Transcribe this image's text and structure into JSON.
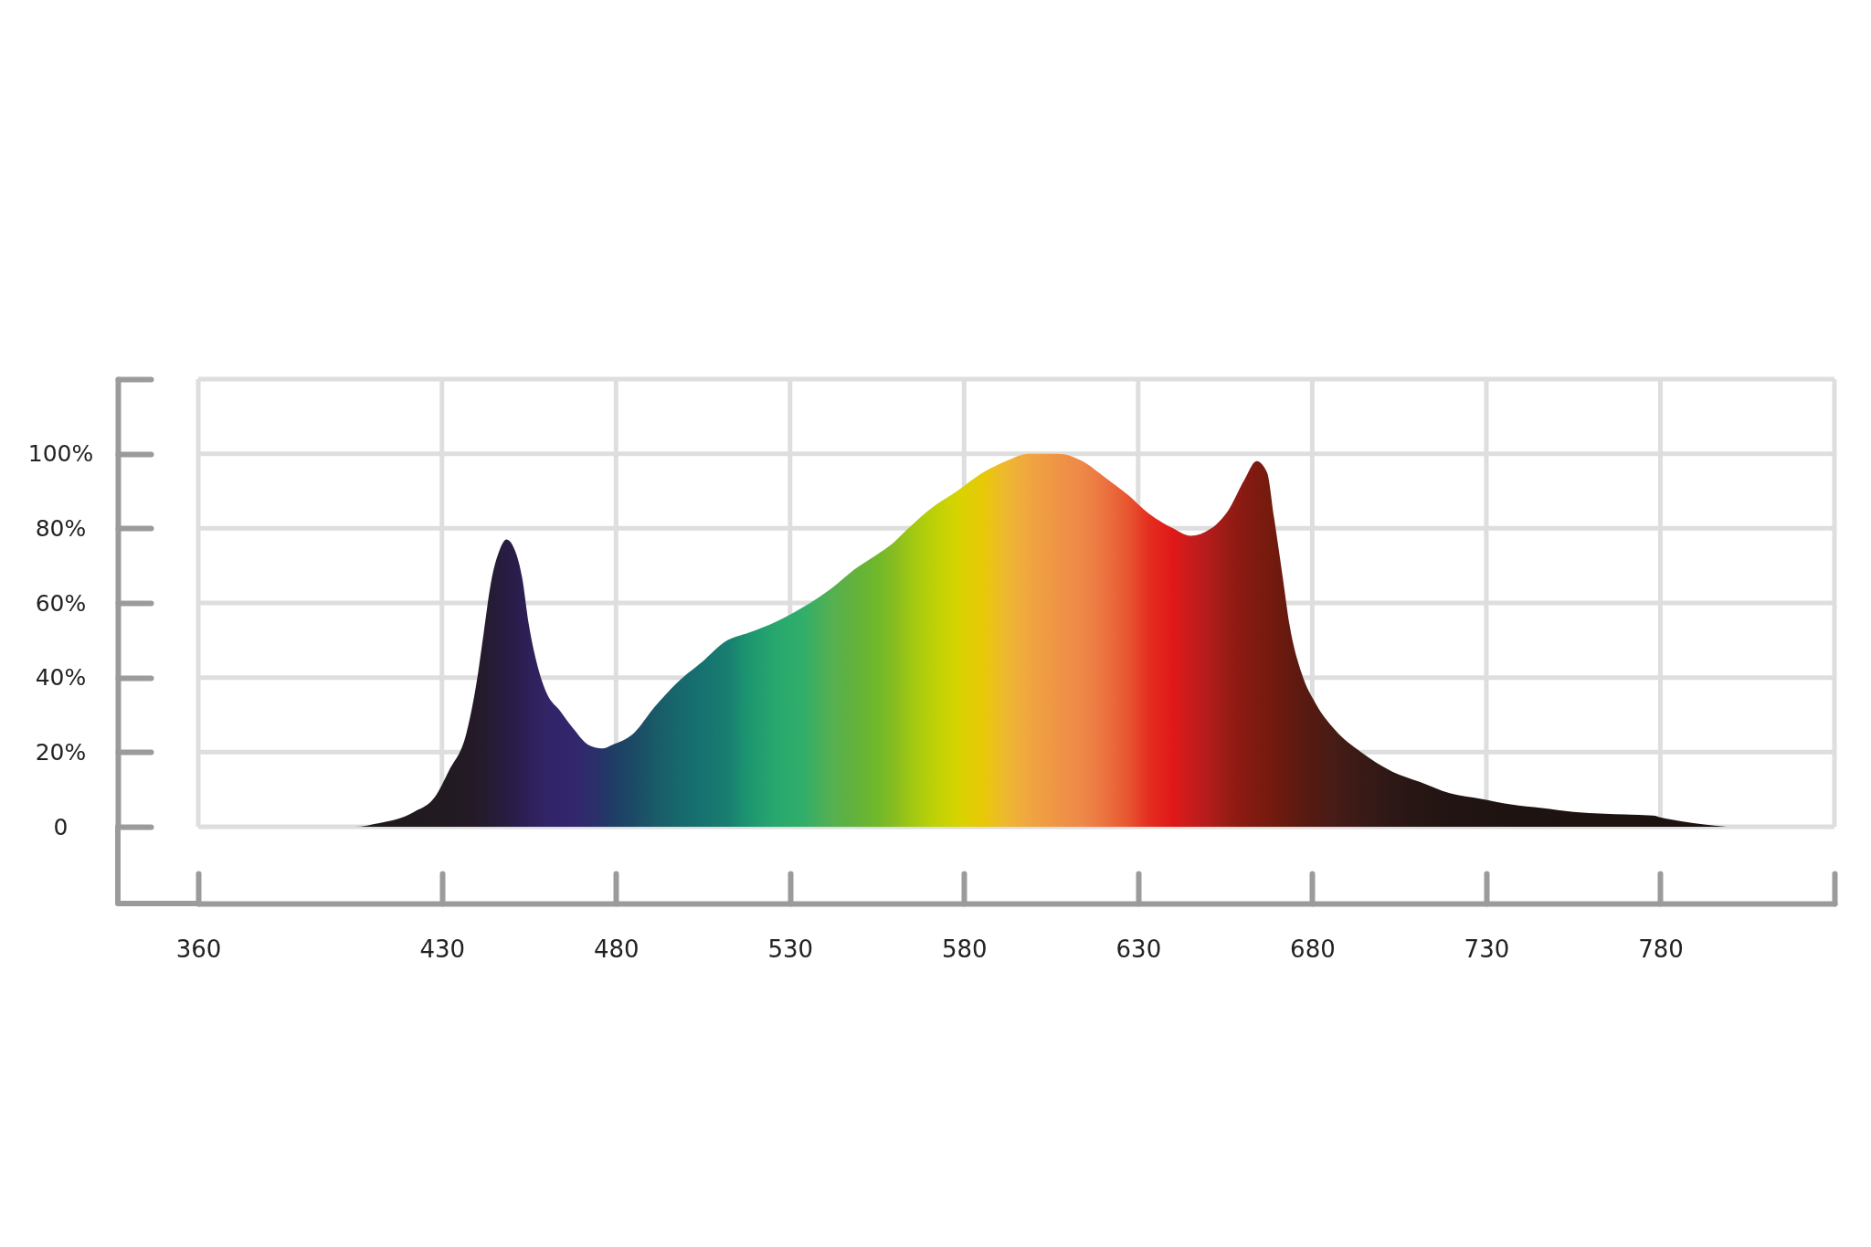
{
  "chart_data": {
    "type": "area",
    "x": [
      380,
      395,
      405,
      412,
      417,
      422,
      428,
      432,
      437,
      440,
      442,
      444,
      446.5,
      448.5,
      451,
      453,
      455,
      457.5,
      460,
      464,
      468,
      472,
      476,
      479,
      485,
      491,
      498,
      504.5,
      512,
      518,
      526,
      534,
      542,
      548.5,
      555,
      559.5,
      564,
      570,
      578,
      585.5,
      592,
      598.5,
      607,
      614,
      620,
      627,
      633,
      640,
      645,
      651,
      656,
      660.5,
      664,
      667,
      669,
      671.5,
      673.5,
      677,
      681,
      686.5,
      694,
      702.5,
      711,
      719.5,
      728.5,
      737,
      746,
      755,
      764,
      778,
      780,
      786,
      792,
      799
    ],
    "values": [
      0,
      0,
      0,
      1,
      2,
      4,
      8,
      15,
      25,
      39,
      52,
      65,
      74,
      77,
      74,
      67,
      54,
      43,
      36,
      31,
      26,
      22,
      21,
      22,
      25,
      32,
      39,
      44,
      50,
      52,
      55,
      59,
      64,
      69,
      73,
      76,
      80,
      85,
      90,
      95,
      98,
      100,
      100,
      98,
      94,
      89,
      84,
      80,
      78,
      80,
      85,
      93,
      98,
      95,
      83,
      67,
      54,
      41,
      33,
      26,
      20,
      15,
      12,
      9,
      7.5,
      6,
      5,
      4,
      3.5,
      3,
      2.5,
      1.5,
      0.7,
      0
    ],
    "colors": [
      "#1c1a1b",
      "#1c1a1b",
      "#1d1a1c",
      "#1e1a1d",
      "#1f1a1e",
      "#201a1f",
      "#211a20",
      "#221a22",
      "#231a25",
      "#241a28",
      "#251b2e",
      "#261b34",
      "#271c3b",
      "#281c42",
      "#2a1d4a",
      "#2c1e52",
      "#2e2058",
      "#30225f",
      "#322466",
      "#33256c",
      "#33266e",
      "#2e2c6c",
      "#263468",
      "#1f3d66",
      "#1c4a66",
      "#1a5a68",
      "#17686c",
      "#167270",
      "#187e70",
      "#1d9670",
      "#27a86e",
      "#32ae6a",
      "#55b050",
      "#62b23c",
      "#70b82a",
      "#84bc22",
      "#9cc616",
      "#b8d008",
      "#d6d400",
      "#e8c808",
      "#eeb830",
      "#f0a640",
      "#ef9446",
      "#ee8848",
      "#ec7440",
      "#e85630",
      "#e42e20",
      "#e01818",
      "#c81c1c",
      "#b01c1a",
      "#961c14",
      "#881a12",
      "#7e1a10",
      "#781a0e",
      "#721a0e",
      "#6a1a0e",
      "#641a10",
      "#5a1a10",
      "#521a12",
      "#461c16",
      "#3a1a16",
      "#2e1816",
      "#261614",
      "#221412",
      "#201412",
      "#1e1311",
      "#1d1311",
      "#1c1210",
      "#1c1210",
      "#1c1210",
      "#1c1210",
      "#1c1210",
      "#1c1210",
      "#1c1210"
    ],
    "xlim": [
      360,
      830
    ],
    "xticks": [
      360,
      430,
      480,
      530,
      580,
      630,
      680,
      730,
      780,
      {
        "value": 830,
        "label": null
      }
    ],
    "ylim": [
      0,
      120
    ],
    "yticks": [
      0,
      {
        "value": 20,
        "label": "20%"
      },
      {
        "value": 40,
        "label": "40%"
      },
      {
        "value": 60,
        "label": "60%"
      },
      {
        "value": 80,
        "label": "80%"
      },
      {
        "value": 100,
        "label": "100%"
      },
      {
        "value": 120,
        "label": null
      }
    ],
    "grid": true
  }
}
